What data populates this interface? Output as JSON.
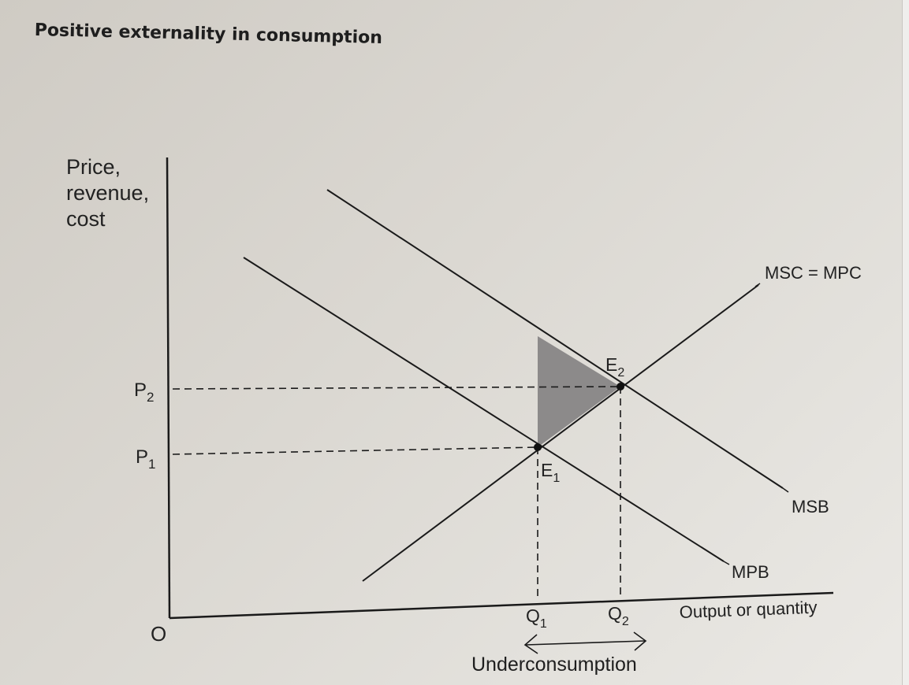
{
  "title": "Positive externality in consumption",
  "axes": {
    "y_label_lines": [
      "Price,",
      "revenue,",
      "cost"
    ],
    "x_label": "Output or quantity",
    "origin": "O"
  },
  "curves": {
    "supply": "MSC = MPC",
    "msb": "MSB",
    "mpb": "MPB"
  },
  "equilibria": {
    "e1": {
      "label": "E",
      "sub": "1"
    },
    "e2": {
      "label": "E",
      "sub": "2"
    }
  },
  "prices": {
    "p1": {
      "label": "P",
      "sub": "1"
    },
    "p2": {
      "label": "P",
      "sub": "2"
    }
  },
  "quantities": {
    "q1": {
      "label": "Q",
      "sub": "1"
    },
    "q2": {
      "label": "Q",
      "sub": "2"
    }
  },
  "gap_label": "Underconsumption",
  "colors": {
    "ink": "#1a1a1a",
    "welfare_loss_shade": "#8c8a8a"
  }
}
